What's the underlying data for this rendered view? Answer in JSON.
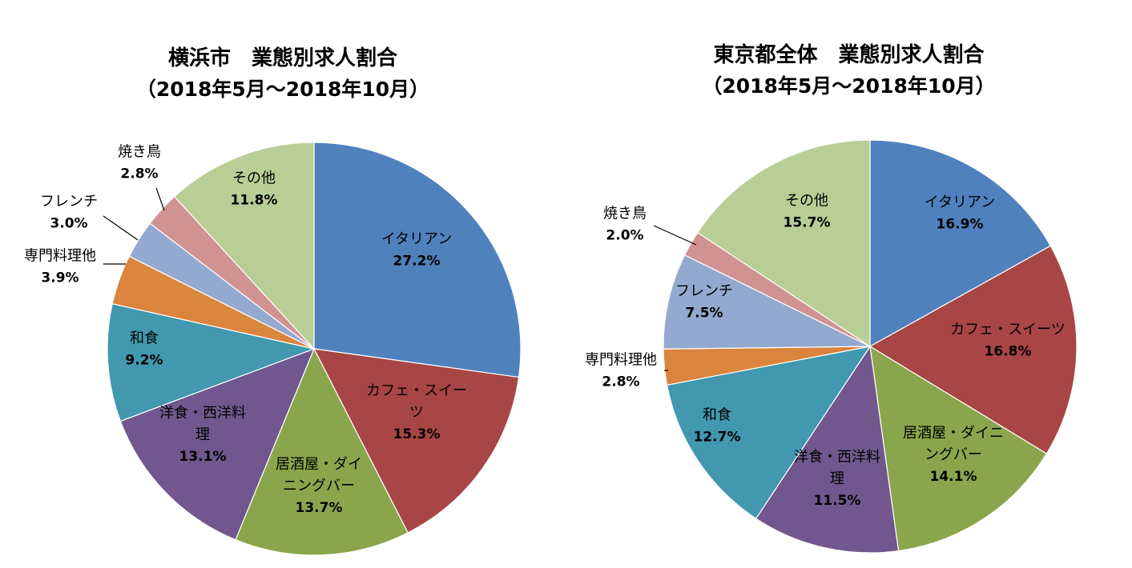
{
  "chart_data": [
    {
      "type": "pie",
      "title": "横浜市　業態別求人割合",
      "subtitle": "（2018年5月～2018年10月）",
      "slices": [
        {
          "label": "イタリアン",
          "value": 27.2,
          "display": "27.2%",
          "color": "#4f81bd"
        },
        {
          "label": "カフェ・スイーツ",
          "value": 15.3,
          "display": "15.3%",
          "color": "#a84645"
        },
        {
          "label": "居酒屋・ダイニングバー",
          "value": 13.7,
          "display": "13.7%",
          "color": "#8aa64c"
        },
        {
          "label": "洋食・西洋料理",
          "value": 13.1,
          "display": "13.1%",
          "color": "#71578e"
        },
        {
          "label": "和食",
          "value": 9.2,
          "display": "9.2%",
          "color": "#4198af"
        },
        {
          "label": "専門料理他",
          "value": 3.9,
          "display": "3.9%",
          "color": "#db843d"
        },
        {
          "label": "フレンチ",
          "value": 3.0,
          "display": "3.0%",
          "color": "#93a9d0"
        },
        {
          "label": "焼き鳥",
          "value": 2.8,
          "display": "2.8%",
          "color": "#d19392"
        },
        {
          "label": "その他",
          "value": 11.8,
          "display": "11.8%",
          "color": "#b9cd96"
        }
      ]
    },
    {
      "type": "pie",
      "title": "東京都全体　業態別求人割合",
      "subtitle": "（2018年5月～2018年10月）",
      "slices": [
        {
          "label": "イタリアン",
          "value": 16.9,
          "display": "16.9%",
          "color": "#4f81bd"
        },
        {
          "label": "カフェ・スイーツ",
          "value": 16.8,
          "display": "16.8%",
          "color": "#a84645"
        },
        {
          "label": "居酒屋・ダイニングバー",
          "value": 14.1,
          "display": "14.1%",
          "color": "#8aa64c"
        },
        {
          "label": "洋食・西洋料理",
          "value": 11.5,
          "display": "11.5%",
          "color": "#71578e"
        },
        {
          "label": "和食",
          "value": 12.7,
          "display": "12.7%",
          "color": "#4198af"
        },
        {
          "label": "専門料理他",
          "value": 2.8,
          "display": "2.8%",
          "color": "#db843d"
        },
        {
          "label": "フレンチ",
          "value": 7.5,
          "display": "7.5%",
          "color": "#93a9d0"
        },
        {
          "label": "焼き鳥",
          "value": 2.0,
          "display": "2.0%",
          "color": "#d19392"
        },
        {
          "label": "その他",
          "value": 15.7,
          "display": "15.7%",
          "color": "#b9cd96"
        }
      ]
    }
  ]
}
